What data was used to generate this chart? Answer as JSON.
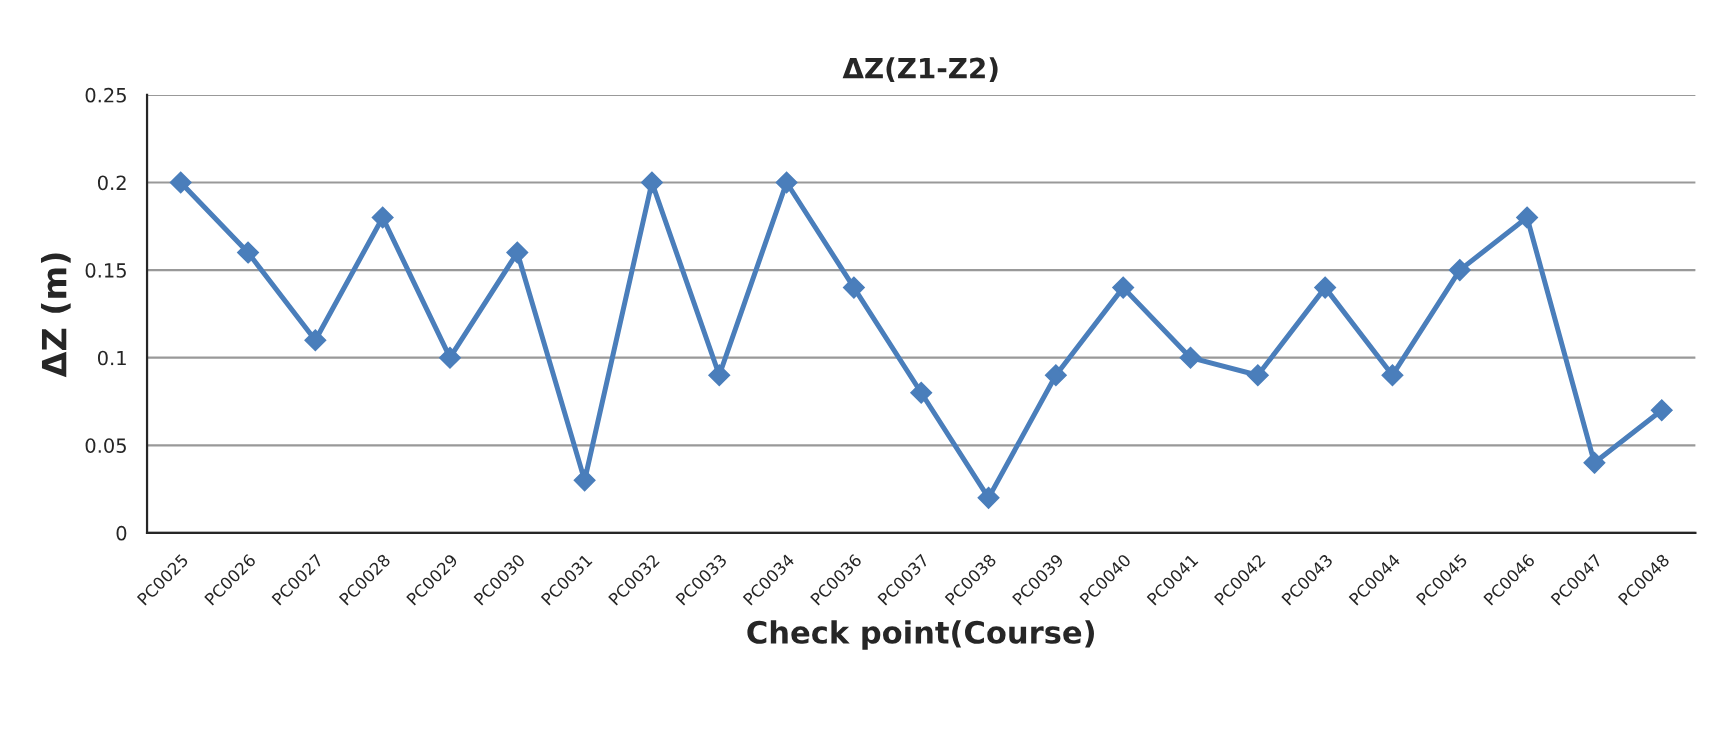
{
  "chart_data": {
    "type": "line",
    "title": "ΔZ(Z1-Z2)",
    "xlabel": "Check point(Course)",
    "ylabel": "ΔZ (m)",
    "categories": [
      "PC0025",
      "PC0026",
      "PC0027",
      "PC0028",
      "PC0029",
      "PC0030",
      "PC0031",
      "PC0032",
      "PC0033",
      "PC0034",
      "PC0036",
      "PC0037",
      "PC0038",
      "PC0039",
      "PC0040",
      "PC0041",
      "PC0042",
      "PC0043",
      "PC0044",
      "PC0045",
      "PC0046",
      "PC0047",
      "PC0048"
    ],
    "series": [
      {
        "color": "#4a7ebb",
        "values": [
          0.2,
          0.16,
          0.11,
          0.18,
          0.1,
          0.16,
          0.03,
          0.2,
          0.09,
          0.2,
          0.14,
          0.08,
          0.02,
          0.09,
          0.14,
          0.1,
          0.09,
          0.14,
          0.09,
          0.15,
          0.18,
          0.04,
          0.07
        ]
      }
    ],
    "ylim": [
      0,
      0.25
    ],
    "yticks": [
      0,
      0.05,
      0.1,
      0.15,
      0.2,
      0.25
    ],
    "grid": "y",
    "marker": "diamond",
    "line_style": "solid",
    "legend": false
  }
}
